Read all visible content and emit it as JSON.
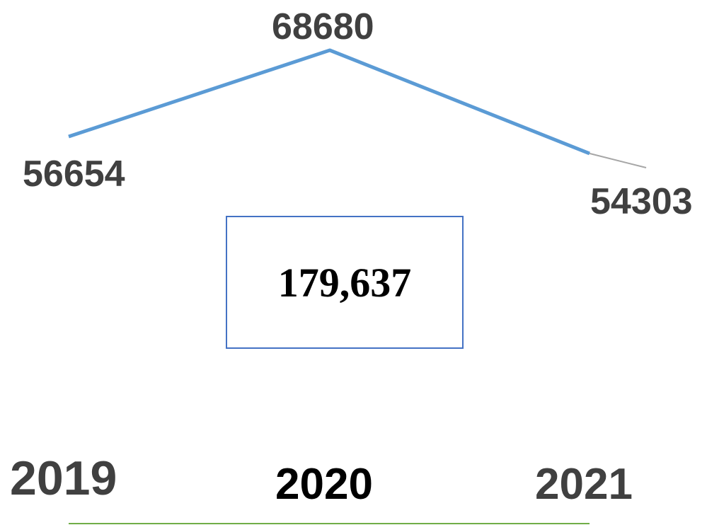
{
  "chart_data": {
    "type": "line",
    "categories": [
      "2019",
      "2020",
      "2021"
    ],
    "values": [
      56654,
      68680,
      54303
    ],
    "data_labels": [
      "56654",
      "68680",
      "54303"
    ],
    "total_label": "179,637",
    "grid": false,
    "legend": "none",
    "colors": {
      "line": "#5b9bd5",
      "leader": "#a6a6a6",
      "baseline": "#70ad47",
      "box_border": "#4472c4",
      "label": "#404040"
    }
  }
}
